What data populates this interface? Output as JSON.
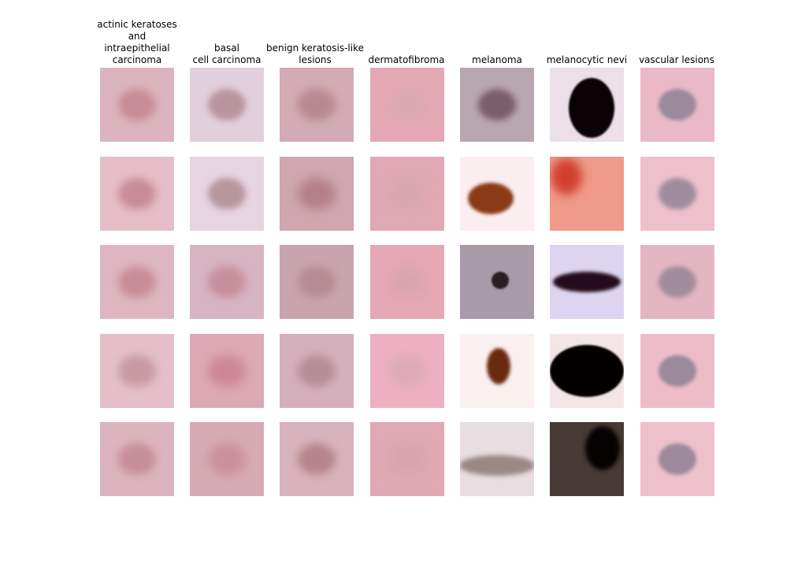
{
  "figure": {
    "columns": [
      {
        "title": "actinic keratoses\nand\nintraepithelial\ncarcinoma",
        "samples": [
          {
            "bg": "#dcb4be",
            "lesion": "#c78c96",
            "blur": 5
          },
          {
            "bg": "#e6bec8",
            "lesion": "#c88c98",
            "blur": 5
          },
          {
            "bg": "#ddb6c0",
            "lesion": "#c88e98",
            "blur": 5
          },
          {
            "bg": "#e4bec8",
            "lesion": "#c89aa4",
            "blur": 5
          },
          {
            "bg": "#dcb4be",
            "lesion": "#c68e98",
            "blur": 5
          }
        ]
      },
      {
        "title": "basal\ncell carcinoma",
        "samples": [
          {
            "bg": "#e2cfdc",
            "lesion": "#b8949e",
            "blur": 4
          },
          {
            "bg": "#e6d4e0",
            "lesion": "#b8969e",
            "blur": 4
          },
          {
            "bg": "#d6b4c2",
            "lesion": "#c88e9c",
            "blur": 5
          },
          {
            "bg": "#dca8b4",
            "lesion": "#cc8894",
            "blur": 6
          },
          {
            "bg": "#d6aab4",
            "lesion": "#cc909a",
            "blur": 6
          }
        ]
      },
      {
        "title": "benign keratosis-like\nlesions",
        "samples": [
          {
            "bg": "#d2abb4",
            "lesion": "#b88890",
            "blur": 5
          },
          {
            "bg": "#d0a6b0",
            "lesion": "#b48088",
            "blur": 6
          },
          {
            "bg": "#c8a4ae",
            "lesion": "#b48c94",
            "blur": 5
          },
          {
            "bg": "#d4b0bc",
            "lesion": "#b48e98",
            "blur": 5
          },
          {
            "bg": "#d8b2bc",
            "lesion": "#b6848c",
            "blur": 5
          }
        ]
      },
      {
        "title": "dermatofibroma",
        "samples": [
          {
            "bg": "#e4a8b4",
            "lesion": "#d8a8b2",
            "blur": 8
          },
          {
            "bg": "#e0a8b4",
            "lesion": "#d6a6b0",
            "blur": 8
          },
          {
            "bg": "#e6a8b4",
            "lesion": "#d8a4b0",
            "blur": 8
          },
          {
            "bg": "#eeb0c0",
            "lesion": "#dcaab6",
            "blur": 8
          },
          {
            "bg": "#e0a8b2",
            "lesion": "#d6a4ae",
            "blur": 8
          }
        ]
      },
      {
        "title": "melanoma",
        "samples": [
          {
            "bg": "#b8a6b0",
            "lesion": "#7a5e6a",
            "blur": 4
          },
          {
            "bg": "#fbeef0",
            "lesion": "#8a3a14",
            "blur": 2
          },
          {
            "bg": "#a89aa8",
            "lesion": "#2a1e24",
            "blur": 1
          },
          {
            "bg": "#fbf0f0",
            "lesion": "#6a2a10",
            "blur": 2
          },
          {
            "bg": "#e8dde0",
            "lesion": "#9a8884",
            "blur": 3
          }
        ]
      },
      {
        "title": "melanocytic nevi",
        "samples": [
          {
            "bg": "#ecdfe8",
            "lesion": "#0a0204",
            "blur": 1
          },
          {
            "bg": "#f09a8a",
            "lesion": "#d04030",
            "blur": 6
          },
          {
            "bg": "#dcd4f0",
            "lesion": "#240c1c",
            "blur": 2
          },
          {
            "bg": "#f4e6e6",
            "lesion": "#050000",
            "blur": 1
          },
          {
            "bg": "#4a3a36",
            "lesion": "#060202",
            "blur": 3
          }
        ]
      },
      {
        "title": "vascular lesions",
        "samples": [
          {
            "bg": "#eab8c6",
            "lesion": "#9a8a9c",
            "blur": 2
          },
          {
            "bg": "#eec0cc",
            "lesion": "#a08c9c",
            "blur": 3
          },
          {
            "bg": "#e4b6c2",
            "lesion": "#a08c9a",
            "blur": 3
          },
          {
            "bg": "#eebcc8",
            "lesion": "#9a8a9a",
            "blur": 2
          },
          {
            "bg": "#eec0cc",
            "lesion": "#9c8a9a",
            "blur": 2
          }
        ]
      }
    ]
  }
}
